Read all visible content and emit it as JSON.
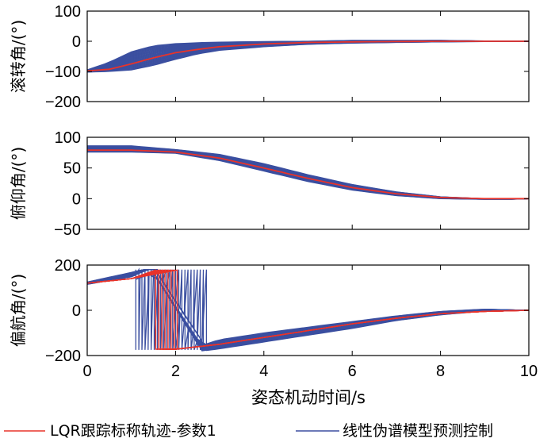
{
  "chart_data": {
    "type": "line",
    "xlabel": "姿态机动时间/s",
    "xlim": [
      0,
      10
    ],
    "xticks": [
      0,
      2,
      4,
      6,
      8,
      10
    ],
    "grid": false,
    "legend": {
      "placement": "bottom",
      "entries": [
        {
          "label": "LQR跟踪标称轨迹-参数1",
          "color": "#e8332a"
        },
        {
          "label": "线性伪谱模型预测控制",
          "color": "#3b4fa0"
        }
      ]
    },
    "colors": {
      "lqr": "#e8332a",
      "mpc": "#3b4fa0"
    },
    "panels": [
      {
        "ylabel": "滚转角/(°)",
        "ylim": [
          -200,
          100
        ],
        "yticks": [
          100,
          0,
          -100,
          -200
        ],
        "series": [
          {
            "name": "LQR跟踪标称轨迹-参数1",
            "x": [
              0,
              0.5,
              1,
              1.5,
              2,
              2.5,
              3,
              4,
              5,
              6,
              7,
              8,
              9,
              10
            ],
            "y": [
              -98,
              -93,
              -75,
              -55,
              -38,
              -27,
              -18,
              -9,
              -4,
              -2,
              -1,
              0,
              0,
              0
            ]
          },
          {
            "name": "线性伪谱模型预测控制",
            "x": [
              0,
              0.5,
              1,
              1.5,
              2,
              2.5,
              3,
              4,
              5,
              6,
              7,
              8,
              9,
              10
            ],
            "y_upper": [
              -95,
              -70,
              -35,
              -15,
              -8,
              -5,
              -3,
              -1,
              0,
              3,
              3,
              3,
              1,
              0
            ],
            "y_lower": [
              -102,
              -100,
              -95,
              -80,
              -60,
              -42,
              -30,
              -18,
              -10,
              -6,
              -4,
              -2,
              -1,
              0
            ]
          }
        ]
      },
      {
        "ylabel": "俯仰角/(°)",
        "ylim": [
          -50,
          100
        ],
        "yticks": [
          100,
          50,
          0,
          -50
        ],
        "series": [
          {
            "name": "LQR跟踪标称轨迹-参数1",
            "x": [
              0,
              1,
              2,
              3,
              4,
              5,
              6,
              7,
              8,
              9,
              9.6,
              10
            ],
            "y": [
              79,
              79,
              76,
              66,
              50,
              33,
              18,
              8,
              2,
              0,
              0,
              0
            ]
          },
          {
            "name": "线性伪谱模型预测控制",
            "x": [
              0,
              1,
              2,
              3,
              4,
              5,
              6,
              7,
              8,
              9,
              9.6,
              10
            ],
            "y_upper": [
              86,
              86,
              80,
              72,
              57,
              39,
              23,
              11,
              3,
              0,
              0,
              0
            ],
            "y_lower": [
              76,
              76,
              74,
              62,
              45,
              28,
              14,
              5,
              0,
              -1,
              -1,
              0
            ]
          }
        ]
      },
      {
        "ylabel": "偏航角/(°)",
        "ylim": [
          -200,
          200
        ],
        "yticks": [
          200,
          0,
          -200
        ],
        "series": [
          {
            "name": "LQR跟踪标称轨迹-参数1",
            "x": [
              0,
              1,
              1.9,
              2.0,
              3,
              4,
              5,
              6,
              7,
              8,
              9,
              10
            ],
            "y": [
              120,
              140,
              175,
              -172,
              -150,
              -120,
              -90,
              -60,
              -35,
              -15,
              -5,
              0
            ]
          },
          {
            "name": "线性伪谱模型预测控制",
            "x_switch": [
              1.1,
              2.7
            ],
            "x": [
              0,
              1,
              1.5,
              2.6,
              3,
              4,
              5,
              6,
              7,
              8,
              9,
              10
            ],
            "y_upper": [
              125,
              160,
              180,
              -155,
              -130,
              -100,
              -75,
              -50,
              -25,
              -5,
              5,
              0
            ],
            "y_lower": [
              115,
              130,
              165,
              -180,
              -170,
              -140,
              -110,
              -80,
              -45,
              -20,
              -3,
              0
            ]
          }
        ]
      }
    ]
  }
}
